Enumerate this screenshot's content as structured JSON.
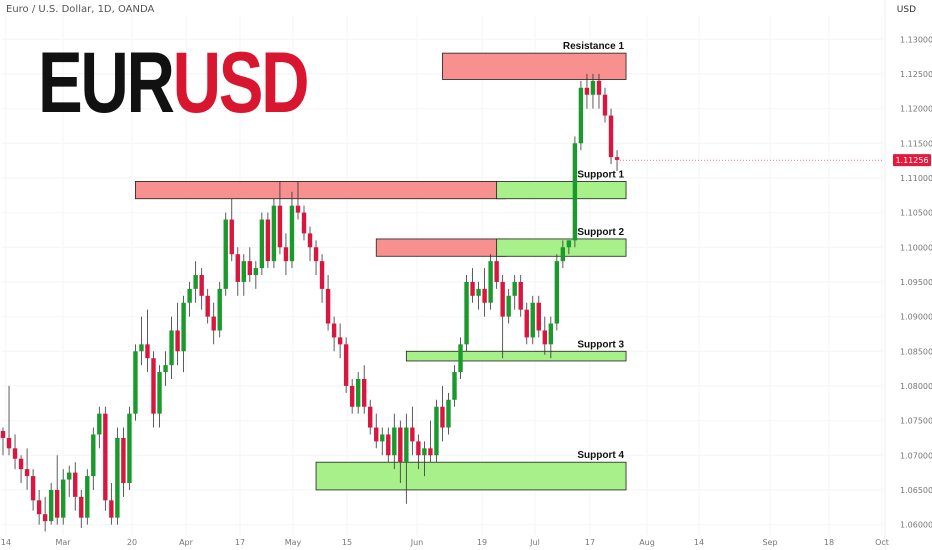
{
  "header": {
    "symbol_line": "Euro / U.S. Dollar, 1D, OANDA",
    "currency": "USD"
  },
  "brand": {
    "part1": "EUR",
    "part2": "USD"
  },
  "colors": {
    "up": "#1a9a2c",
    "down": "#d9163f",
    "resistance": "#f7908f",
    "support": "#a8f08a",
    "price_tag": "#e8173d"
  },
  "chart_data": {
    "type": "candlestick",
    "ylim": [
      1.0585,
      1.1335
    ],
    "y_ticks": [
      "1.13000",
      "1.12500",
      "1.12000",
      "1.11500",
      "1.11000",
      "1.10500",
      "1.10000",
      "1.09500",
      "1.09000",
      "1.08500",
      "1.08000",
      "1.07500",
      "1.07000",
      "1.06500",
      "1.06000"
    ],
    "x_ticks": [
      "14",
      "Mar",
      "20",
      "Apr",
      "17",
      "May",
      "15",
      "Jun",
      "19",
      "Jul",
      "17",
      "Aug",
      "14",
      "Sep",
      "18",
      "Oct"
    ],
    "last_price": "1.11256",
    "zones": [
      {
        "kind": "resistance",
        "label": "Resistance 1",
        "x0": 73,
        "x1": 102,
        "y_top": 1.128,
        "y_bottom": 1.1242
      },
      {
        "kind": "resistance",
        "label": "",
        "x0": 22,
        "x1": 82,
        "y_top": 1.1095,
        "y_bottom": 1.107
      },
      {
        "kind": "support",
        "label": "Support 1",
        "x0": 82,
        "x1": 102,
        "y_top": 1.1095,
        "y_bottom": 1.107
      },
      {
        "kind": "resistance",
        "label": "",
        "x0": 62,
        "x1": 82,
        "y_top": 1.1012,
        "y_bottom": 1.0987
      },
      {
        "kind": "support",
        "label": "Support 2",
        "x0": 82,
        "x1": 102,
        "y_top": 1.1012,
        "y_bottom": 1.0987
      },
      {
        "kind": "support",
        "label": "Support 3",
        "x0": 67,
        "x1": 102,
        "y_top": 1.085,
        "y_bottom": 1.0836
      },
      {
        "kind": "support",
        "label": "Support 4",
        "x0": 52,
        "x1": 102,
        "y_top": 1.069,
        "y_bottom": 1.065
      }
    ],
    "candles": [
      [
        1.0735,
        1.074,
        1.07,
        1.0725
      ],
      [
        1.0725,
        1.08,
        1.07,
        1.071
      ],
      [
        1.071,
        1.073,
        1.068,
        1.0695
      ],
      [
        1.0695,
        1.07,
        1.066,
        1.068
      ],
      [
        1.068,
        1.071,
        1.065,
        1.067
      ],
      [
        1.067,
        1.068,
        1.062,
        1.0635
      ],
      [
        1.0635,
        1.065,
        1.06,
        1.0615
      ],
      [
        1.0615,
        1.064,
        1.059,
        1.0605
      ],
      [
        1.0605,
        1.066,
        1.06,
        1.065
      ],
      [
        1.065,
        1.07,
        1.06,
        1.061
      ],
      [
        1.061,
        1.068,
        1.06,
        1.0665
      ],
      [
        1.0665,
        1.0685,
        1.064,
        1.0675
      ],
      [
        1.0675,
        1.069,
        1.062,
        1.064
      ],
      [
        1.064,
        1.065,
        1.0595,
        1.061
      ],
      [
        1.061,
        1.068,
        1.06,
        1.067
      ],
      [
        1.067,
        1.074,
        1.065,
        1.073
      ],
      [
        1.073,
        1.077,
        1.071,
        1.076
      ],
      [
        1.076,
        1.077,
        1.062,
        1.0635
      ],
      [
        1.0635,
        1.066,
        1.06,
        1.061
      ],
      [
        1.061,
        1.074,
        1.06,
        1.0725
      ],
      [
        1.0725,
        1.074,
        1.064,
        1.066
      ],
      [
        1.066,
        1.077,
        1.065,
        1.076
      ],
      [
        1.076,
        1.086,
        1.075,
        1.085
      ],
      [
        1.085,
        1.09,
        1.083,
        1.086
      ],
      [
        1.086,
        1.091,
        1.082,
        1.084
      ],
      [
        1.084,
        1.085,
        1.074,
        1.076
      ],
      [
        1.076,
        1.083,
        1.074,
        1.082
      ],
      [
        1.082,
        1.085,
        1.08,
        1.083
      ],
      [
        1.083,
        1.09,
        1.081,
        1.088
      ],
      [
        1.088,
        1.092,
        1.083,
        1.085
      ],
      [
        1.085,
        1.093,
        1.082,
        1.092
      ],
      [
        1.092,
        1.095,
        1.09,
        1.094
      ],
      [
        1.094,
        1.098,
        1.092,
        1.096
      ],
      [
        1.096,
        1.097,
        1.091,
        1.093
      ],
      [
        1.093,
        1.094,
        1.089,
        1.09
      ],
      [
        1.09,
        1.092,
        1.086,
        1.088
      ],
      [
        1.088,
        1.095,
        1.087,
        1.094
      ],
      [
        1.094,
        1.105,
        1.093,
        1.104
      ],
      [
        1.104,
        1.107,
        1.098,
        1.099
      ],
      [
        1.099,
        1.1,
        1.093,
        1.095
      ],
      [
        1.095,
        1.099,
        1.093,
        1.098
      ],
      [
        1.098,
        1.1,
        1.095,
        1.096
      ],
      [
        1.096,
        1.098,
        1.094,
        1.097
      ],
      [
        1.097,
        1.105,
        1.096,
        1.104
      ],
      [
        1.104,
        1.105,
        1.097,
        1.098
      ],
      [
        1.098,
        1.107,
        1.097,
        1.106
      ],
      [
        1.106,
        1.1095,
        1.099,
        1.1
      ],
      [
        1.1,
        1.102,
        1.096,
        1.098
      ],
      [
        1.098,
        1.108,
        1.097,
        1.106
      ],
      [
        1.106,
        1.1095,
        1.104,
        1.105
      ],
      [
        1.105,
        1.106,
        1.101,
        1.102
      ],
      [
        1.102,
        1.103,
        1.098,
        1.1
      ],
      [
        1.1,
        1.101,
        1.096,
        1.098
      ],
      [
        1.098,
        1.099,
        1.092,
        1.094
      ],
      [
        1.094,
        1.096,
        1.088,
        1.089
      ],
      [
        1.089,
        1.09,
        1.085,
        1.087
      ],
      [
        1.087,
        1.089,
        1.084,
        1.086
      ],
      [
        1.086,
        1.087,
        1.079,
        1.08
      ],
      [
        1.08,
        1.081,
        1.076,
        1.077
      ],
      [
        1.077,
        1.082,
        1.076,
        1.081
      ],
      [
        1.081,
        1.083,
        1.076,
        1.077
      ],
      [
        1.077,
        1.078,
        1.073,
        1.074
      ],
      [
        1.074,
        1.076,
        1.071,
        1.072
      ],
      [
        1.072,
        1.074,
        1.07,
        1.073
      ],
      [
        1.073,
        1.074,
        1.069,
        1.07
      ],
      [
        1.07,
        1.076,
        1.068,
        1.074
      ],
      [
        1.074,
        1.075,
        1.066,
        1.069
      ],
      [
        1.069,
        1.076,
        1.063,
        1.074
      ],
      [
        1.074,
        1.077,
        1.07,
        1.072
      ],
      [
        1.072,
        1.073,
        1.068,
        1.07
      ],
      [
        1.07,
        1.072,
        1.067,
        1.071
      ],
      [
        1.071,
        1.075,
        1.069,
        1.07
      ],
      [
        1.07,
        1.078,
        1.069,
        1.077
      ],
      [
        1.077,
        1.08,
        1.072,
        1.074
      ],
      [
        1.074,
        1.079,
        1.073,
        1.078
      ],
      [
        1.078,
        1.083,
        1.077,
        1.082
      ],
      [
        1.082,
        1.087,
        1.081,
        1.086
      ],
      [
        1.086,
        1.096,
        1.085,
        1.095
      ],
      [
        1.095,
        1.097,
        1.092,
        1.093
      ],
      [
        1.093,
        1.095,
        1.091,
        1.094
      ],
      [
        1.094,
        1.097,
        1.09,
        1.092
      ],
      [
        1.092,
        1.099,
        1.091,
        1.098
      ],
      [
        1.098,
        1.1,
        1.094,
        1.095
      ],
      [
        1.095,
        1.096,
        1.084,
        1.09
      ],
      [
        1.09,
        1.094,
        1.089,
        1.093
      ],
      [
        1.093,
        1.096,
        1.091,
        1.095
      ],
      [
        1.095,
        1.096,
        1.09,
        1.091
      ],
      [
        1.091,
        1.092,
        1.086,
        1.087
      ],
      [
        1.087,
        1.093,
        1.086,
        1.092
      ],
      [
        1.092,
        1.093,
        1.087,
        1.088
      ],
      [
        1.088,
        1.09,
        1.0845,
        1.086
      ],
      [
        1.086,
        1.09,
        1.084,
        1.089
      ],
      [
        1.089,
        1.099,
        1.088,
        1.098
      ],
      [
        1.098,
        1.101,
        1.097,
        1.1
      ],
      [
        1.1,
        1.101,
        1.099,
        1.101
      ],
      [
        1.101,
        1.116,
        1.1,
        1.115
      ],
      [
        1.115,
        1.124,
        1.114,
        1.123
      ],
      [
        1.123,
        1.125,
        1.12,
        1.122
      ],
      [
        1.122,
        1.125,
        1.12,
        1.124
      ],
      [
        1.124,
        1.125,
        1.12,
        1.122
      ],
      [
        1.122,
        1.123,
        1.118,
        1.119
      ],
      [
        1.119,
        1.12,
        1.112,
        1.113
      ],
      [
        1.113,
        1.114,
        1.111,
        1.1126
      ]
    ]
  }
}
